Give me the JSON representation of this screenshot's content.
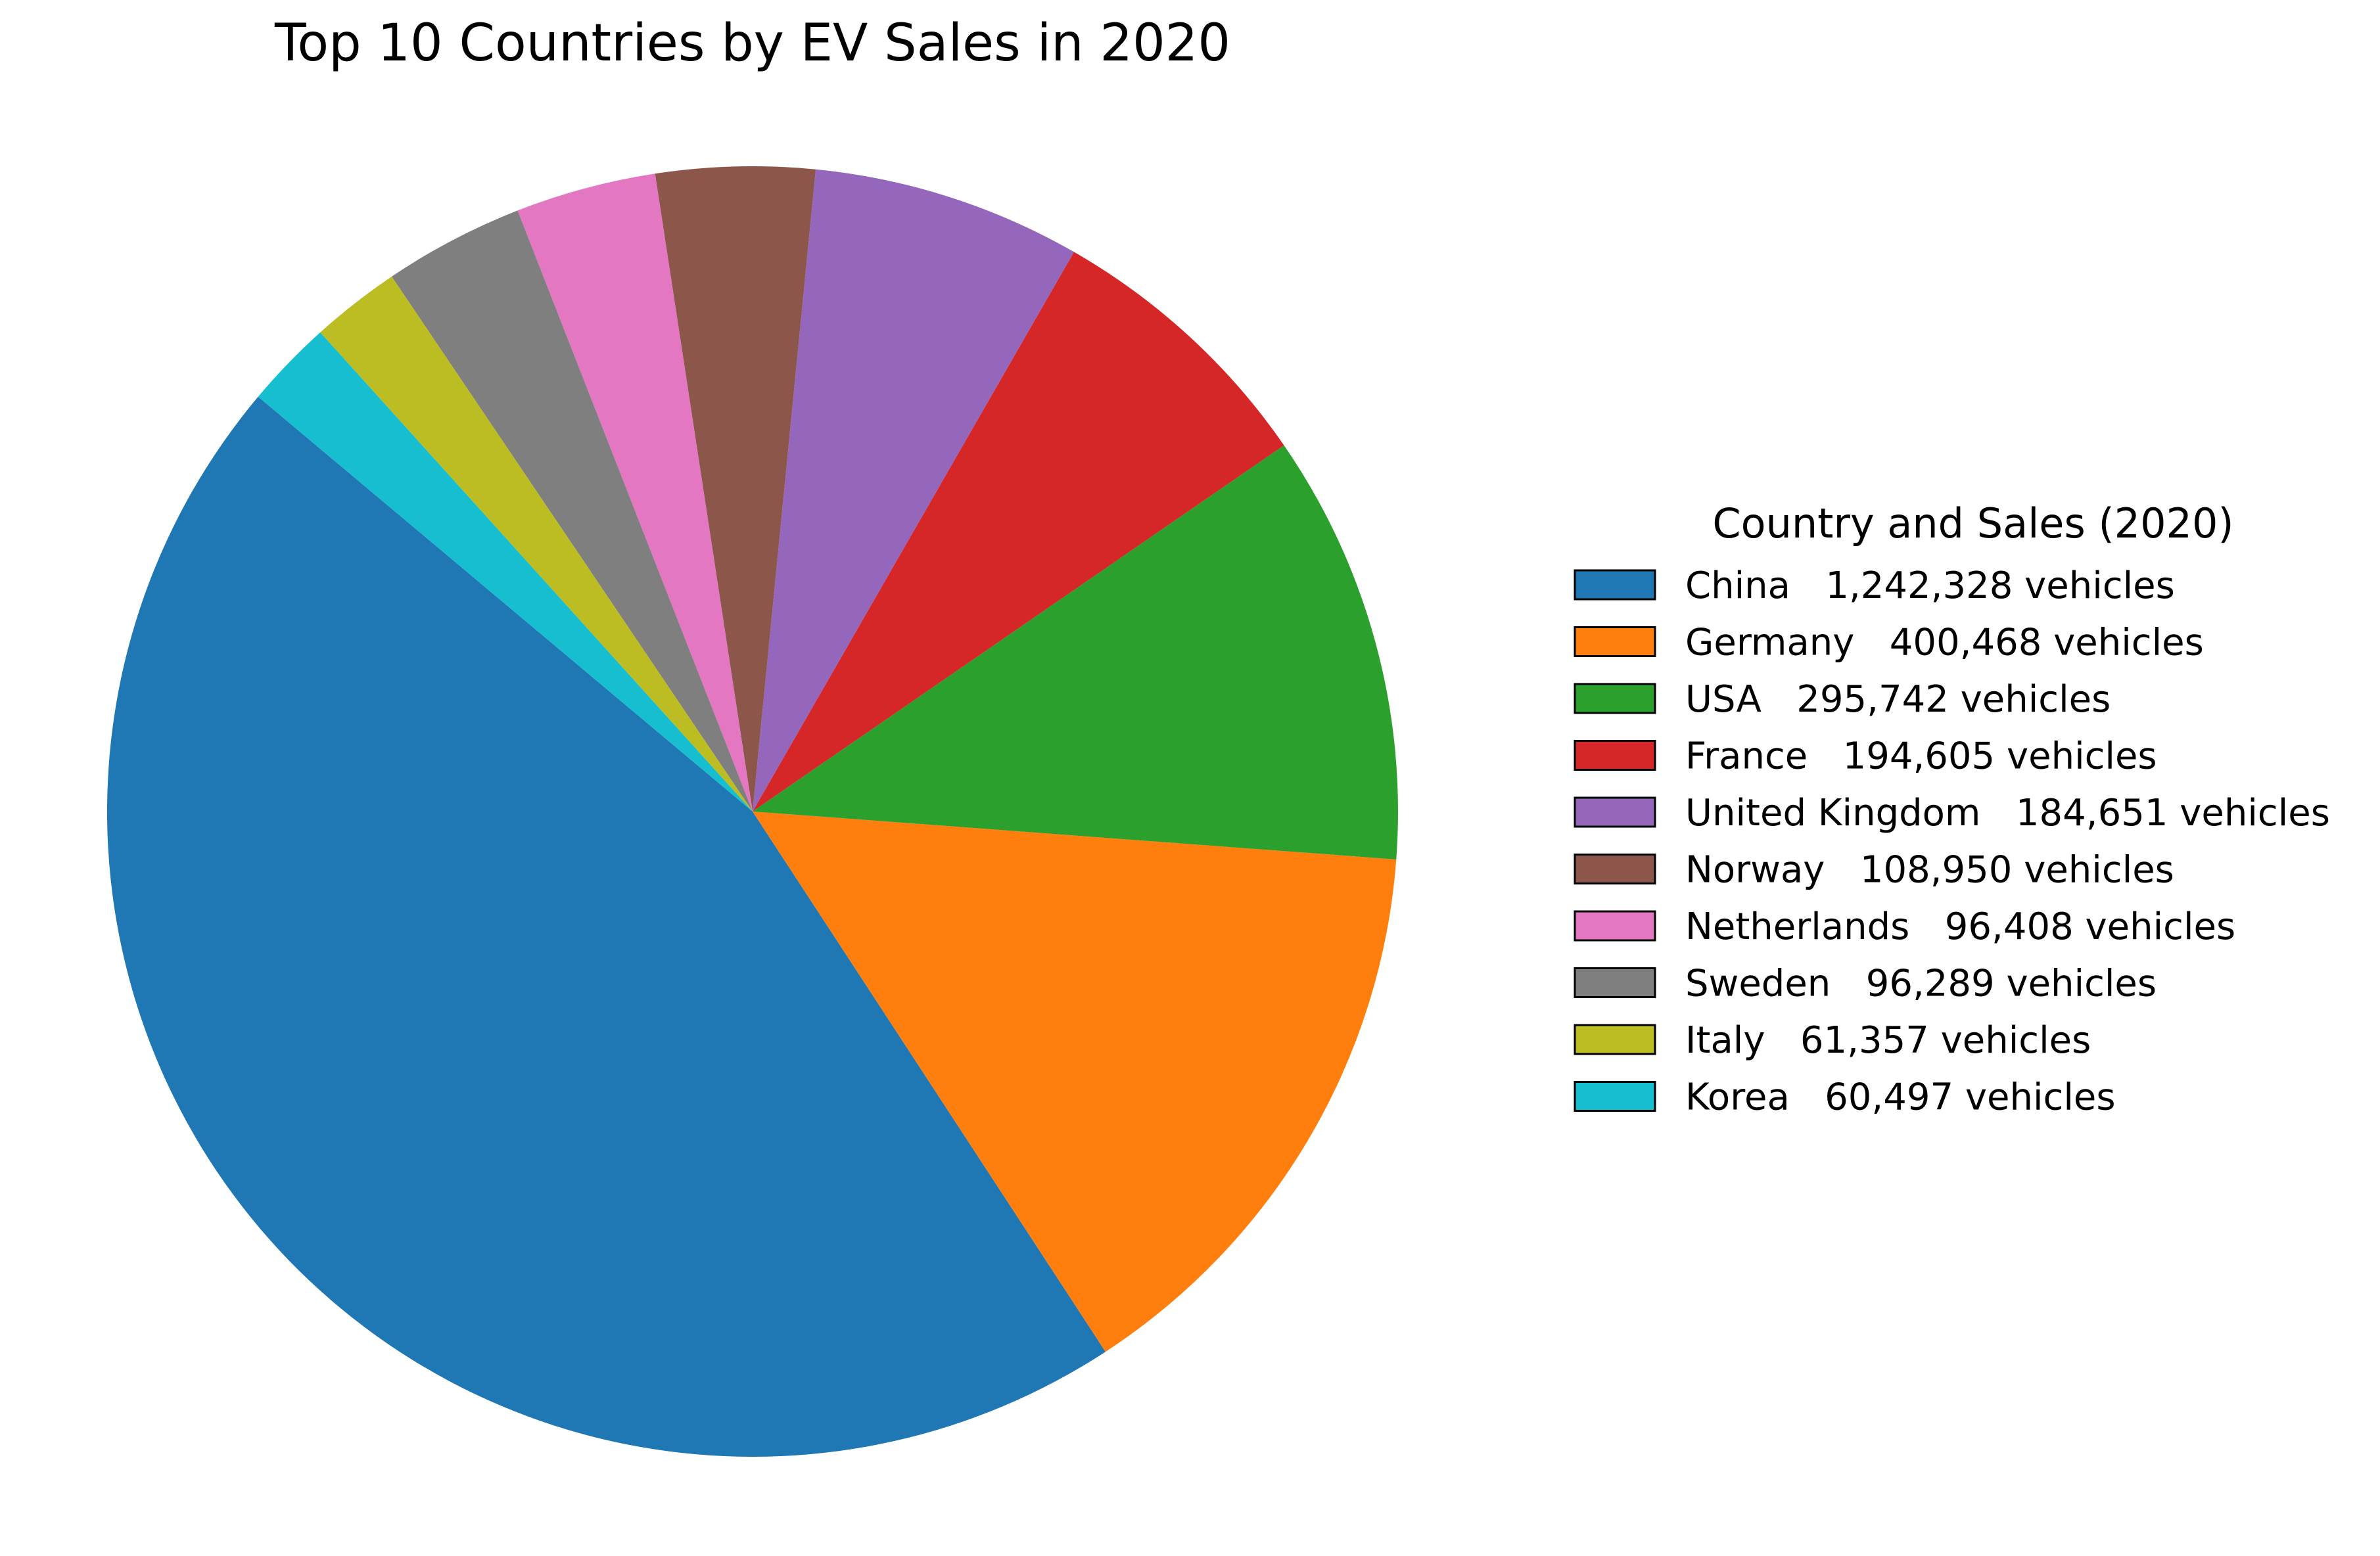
{
  "chart_data": {
    "type": "pie",
    "title": "Top 10 Countries by EV Sales in 2020",
    "legend_title": "Country and Sales (2020)",
    "legend_position": "right",
    "start_angle_deg": 140,
    "direction": "counterclockwise",
    "slices": [
      {
        "country": "China",
        "value": 1242328,
        "label": "China   1,242,328 vehicles",
        "color": "#1f77b4"
      },
      {
        "country": "Germany",
        "value": 400468,
        "label": "Germany   400,468 vehicles",
        "color": "#ff7f0e"
      },
      {
        "country": "USA",
        "value": 295742,
        "label": "USA   295,742 vehicles",
        "color": "#2ca02c"
      },
      {
        "country": "France",
        "value": 194605,
        "label": "France   194,605 vehicles",
        "color": "#d62728"
      },
      {
        "country": "United Kingdom",
        "value": 184651,
        "label": "United Kingdom   184,651 vehicles",
        "color": "#9467bd"
      },
      {
        "country": "Norway",
        "value": 108950,
        "label": "Norway   108,950 vehicles",
        "color": "#8c564b"
      },
      {
        "country": "Netherlands",
        "value": 96408,
        "label": "Netherlands   96,408 vehicles",
        "color": "#e377c2"
      },
      {
        "country": "Sweden",
        "value": 96289,
        "label": "Sweden   96,289 vehicles",
        "color": "#7f7f7f"
      },
      {
        "country": "Italy",
        "value": 61357,
        "label": "Italy   61,357 vehicles",
        "color": "#bcbd22"
      },
      {
        "country": "Korea",
        "value": 60497,
        "label": "Korea   60,497 vehicles",
        "color": "#17becf"
      }
    ]
  }
}
